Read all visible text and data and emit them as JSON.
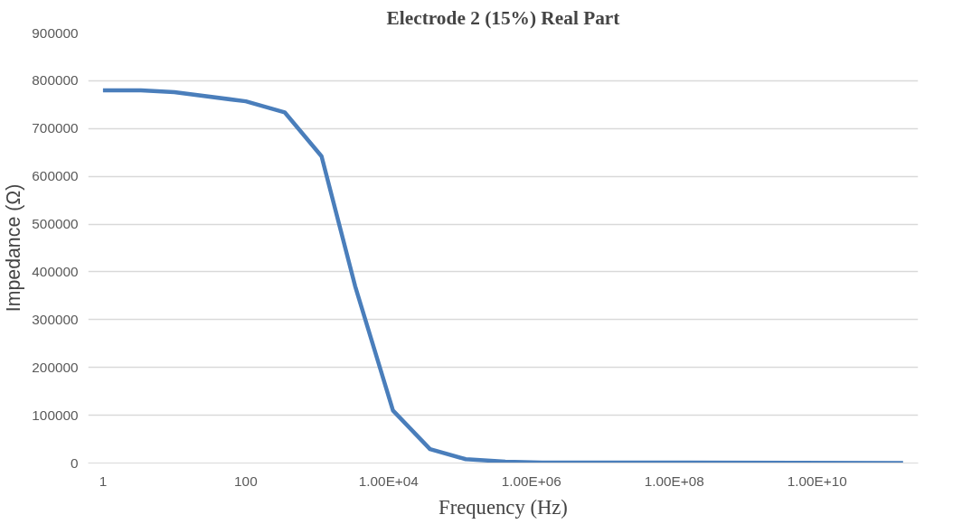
{
  "chart_data": {
    "type": "line",
    "title": "Electrode 2 (15%) Real Part",
    "xlabel": "Frequency (Hz)",
    "ylabel": "Impedance (Ω)",
    "log": "x",
    "grid": "y",
    "xlim": [
      0.62,
      260000000000.0
    ],
    "ylim": [
      0,
      900000
    ],
    "xticks": [
      1,
      100,
      {
        "value": 10000,
        "label": "1.00E+04"
      },
      {
        "value": 1000000,
        "label": "1.00E+06"
      },
      {
        "value": 100000000,
        "label": "1.00E+08"
      },
      {
        "value": 10000000000,
        "label": "1.00E+10"
      }
    ],
    "yticks": [
      0,
      100000,
      200000,
      300000,
      400000,
      500000,
      600000,
      700000,
      800000,
      900000
    ],
    "series": [
      {
        "color": "#4a7ebb",
        "x": [
          1,
          3.4,
          10,
          100,
          350,
          1150,
          3400,
          11500,
          38000,
          120000,
          430000,
          1400000,
          100000000,
          160000000000
        ],
        "values": [
          780000,
          780000,
          776000,
          757000,
          734000,
          642000,
          370000,
          110000,
          29000,
          8000,
          3000,
          1000,
          1000,
          0
        ]
      }
    ]
  }
}
